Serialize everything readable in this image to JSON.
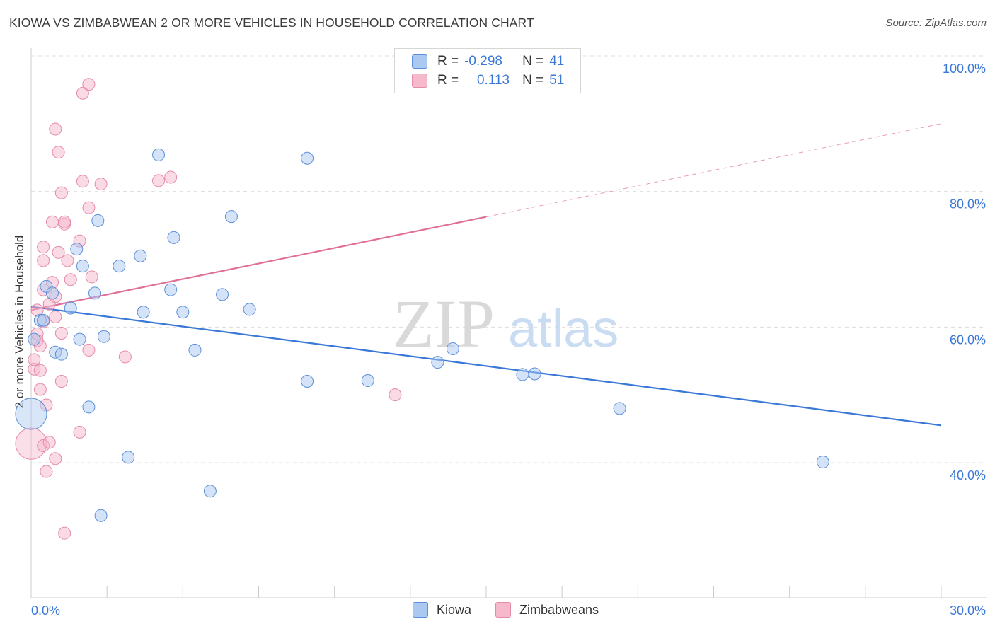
{
  "title": "KIOWA VS ZIMBABWEAN 2 OR MORE VEHICLES IN HOUSEHOLD CORRELATION CHART",
  "source": "Source: ZipAtlas.com",
  "watermark": {
    "zip": "ZIP",
    "atlas": "atlas"
  },
  "legend": {
    "kiowa": {
      "r_label": "R =",
      "r_value": "-0.298",
      "n_label": "N =",
      "n_value": "41"
    },
    "zimbabwean": {
      "r_label": "R =",
      "r_value": "0.113",
      "n_label": "N =",
      "n_value": "51"
    }
  },
  "bottom_legend": {
    "kiowa": "Kiowa",
    "zimbabwean": "Zimbabweans"
  },
  "colors": {
    "kiowa_fill": "#aac8f0",
    "kiowa_stroke": "#5b8fd8",
    "kiowa_line": "#3a78d8",
    "zim_fill": "#f6b8cb",
    "zim_stroke": "#e58aa8",
    "zim_line": "#e0709a",
    "axis_text": "#3a78d8",
    "grid": "#dddddd"
  },
  "chart_data": {
    "type": "scatter",
    "title": "KIOWA VS ZIMBABWEAN 2 OR MORE VEHICLES IN HOUSEHOLD CORRELATION CHART",
    "xlabel": "",
    "ylabel": "2 or more Vehicles in Household",
    "xlim": [
      0,
      30
    ],
    "ylim": [
      20,
      102
    ],
    "x_tick_labels": [
      "0.0%",
      "30.0%"
    ],
    "y_ticks": [
      40,
      60,
      80,
      100
    ],
    "y_tick_labels": [
      "40.0%",
      "60.0%",
      "80.0%",
      "100.0%"
    ],
    "series": [
      {
        "name": "Kiowa",
        "r": -0.298,
        "n": 41,
        "trend": {
          "x0": 0,
          "y0": 63.0,
          "x1": 30,
          "y1": 45.5,
          "dashed_from": null
        },
        "points": [
          {
            "x": 0.0,
            "y": 47.2,
            "big": true
          },
          {
            "x": 0.1,
            "y": 58.2
          },
          {
            "x": 0.3,
            "y": 61.0
          },
          {
            "x": 0.4,
            "y": 61.0
          },
          {
            "x": 0.5,
            "y": 66.0
          },
          {
            "x": 0.7,
            "y": 65.0
          },
          {
            "x": 0.8,
            "y": 56.3
          },
          {
            "x": 1.0,
            "y": 56.0
          },
          {
            "x": 1.3,
            "y": 62.8
          },
          {
            "x": 1.5,
            "y": 71.5
          },
          {
            "x": 1.6,
            "y": 58.2
          },
          {
            "x": 1.7,
            "y": 69.0
          },
          {
            "x": 1.9,
            "y": 48.2
          },
          {
            "x": 2.1,
            "y": 65.0
          },
          {
            "x": 2.2,
            "y": 75.7
          },
          {
            "x": 2.3,
            "y": 32.2
          },
          {
            "x": 2.4,
            "y": 58.6
          },
          {
            "x": 2.9,
            "y": 69.0
          },
          {
            "x": 3.2,
            "y": 40.8
          },
          {
            "x": 3.6,
            "y": 70.5
          },
          {
            "x": 3.7,
            "y": 62.2
          },
          {
            "x": 4.2,
            "y": 85.4
          },
          {
            "x": 4.6,
            "y": 65.5
          },
          {
            "x": 4.7,
            "y": 73.2
          },
          {
            "x": 5.0,
            "y": 62.2
          },
          {
            "x": 5.4,
            "y": 56.6
          },
          {
            "x": 5.9,
            "y": 35.8
          },
          {
            "x": 6.3,
            "y": 64.8
          },
          {
            "x": 6.6,
            "y": 76.3
          },
          {
            "x": 7.2,
            "y": 62.6
          },
          {
            "x": 9.1,
            "y": 52.0
          },
          {
            "x": 9.1,
            "y": 84.9
          },
          {
            "x": 11.1,
            "y": 52.1
          },
          {
            "x": 13.4,
            "y": 54.8
          },
          {
            "x": 13.9,
            "y": 56.8
          },
          {
            "x": 16.2,
            "y": 53.0
          },
          {
            "x": 16.6,
            "y": 53.1
          },
          {
            "x": 19.4,
            "y": 48.0
          },
          {
            "x": 26.1,
            "y": 40.1
          }
        ]
      },
      {
        "name": "Zimbabweans",
        "r": 0.113,
        "n": 51,
        "trend": {
          "x0": 0,
          "y0": 62.5,
          "x1": 30,
          "y1": 90.0,
          "dashed_from": 15
        },
        "points": [
          {
            "x": 0.0,
            "y": 42.8,
            "big": true
          },
          {
            "x": 0.1,
            "y": 53.8
          },
          {
            "x": 0.1,
            "y": 55.2
          },
          {
            "x": 0.2,
            "y": 58.0
          },
          {
            "x": 0.2,
            "y": 59.0
          },
          {
            "x": 0.2,
            "y": 62.5
          },
          {
            "x": 0.3,
            "y": 50.8
          },
          {
            "x": 0.3,
            "y": 53.6
          },
          {
            "x": 0.3,
            "y": 57.2
          },
          {
            "x": 0.4,
            "y": 42.5
          },
          {
            "x": 0.4,
            "y": 60.8
          },
          {
            "x": 0.4,
            "y": 65.5
          },
          {
            "x": 0.4,
            "y": 69.8
          },
          {
            "x": 0.4,
            "y": 71.8
          },
          {
            "x": 0.5,
            "y": 38.7
          },
          {
            "x": 0.5,
            "y": 48.5
          },
          {
            "x": 0.6,
            "y": 43.0
          },
          {
            "x": 0.6,
            "y": 63.4
          },
          {
            "x": 0.7,
            "y": 66.6
          },
          {
            "x": 0.7,
            "y": 75.5
          },
          {
            "x": 0.8,
            "y": 61.5
          },
          {
            "x": 0.8,
            "y": 89.2
          },
          {
            "x": 0.8,
            "y": 40.6
          },
          {
            "x": 0.8,
            "y": 64.5
          },
          {
            "x": 0.9,
            "y": 85.8
          },
          {
            "x": 0.9,
            "y": 71.0
          },
          {
            "x": 1.0,
            "y": 79.8
          },
          {
            "x": 1.0,
            "y": 59.1
          },
          {
            "x": 1.0,
            "y": 52.0
          },
          {
            "x": 1.1,
            "y": 75.2
          },
          {
            "x": 1.1,
            "y": 75.5
          },
          {
            "x": 1.1,
            "y": 29.6
          },
          {
            "x": 1.2,
            "y": 69.8
          },
          {
            "x": 1.3,
            "y": 67.0
          },
          {
            "x": 1.6,
            "y": 44.5
          },
          {
            "x": 1.6,
            "y": 72.7
          },
          {
            "x": 1.7,
            "y": 81.5
          },
          {
            "x": 1.7,
            "y": 94.5
          },
          {
            "x": 1.9,
            "y": 95.8
          },
          {
            "x": 1.9,
            "y": 56.6
          },
          {
            "x": 1.9,
            "y": 77.6
          },
          {
            "x": 2.0,
            "y": 67.4
          },
          {
            "x": 2.3,
            "y": 81.1
          },
          {
            "x": 3.1,
            "y": 55.6
          },
          {
            "x": 4.2,
            "y": 81.6
          },
          {
            "x": 4.6,
            "y": 82.1
          },
          {
            "x": 12.0,
            "y": 50.0
          }
        ]
      }
    ]
  }
}
